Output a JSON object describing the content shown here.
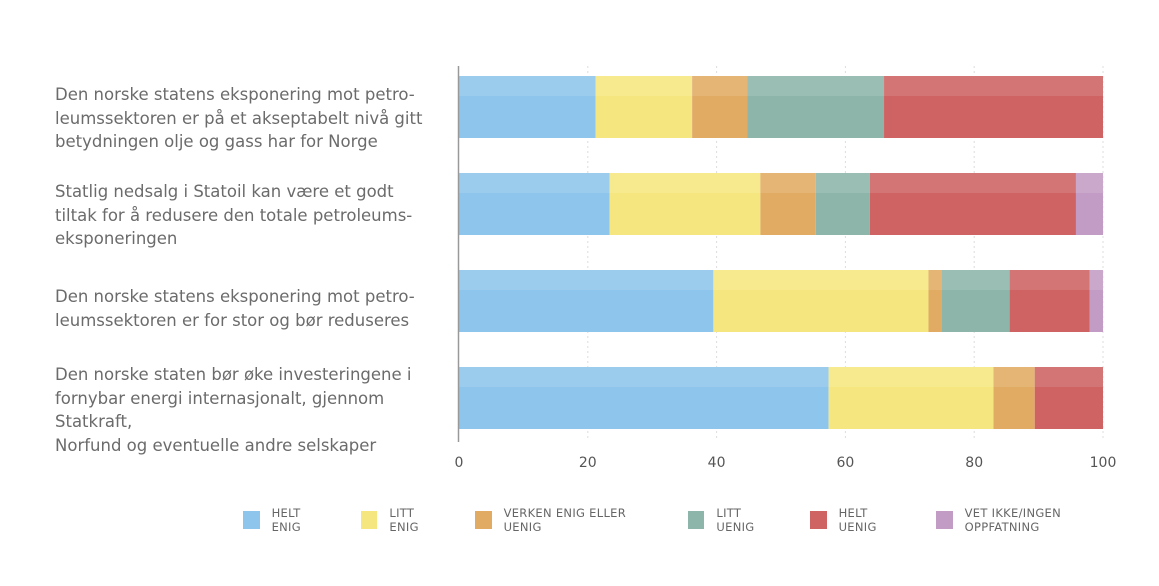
{
  "chart_data": {
    "type": "bar",
    "orientation": "horizontal",
    "stacked": true,
    "categories": [
      "Den norske statens eksponering mot petro-\nleumssektoren er på et akseptabelt nivå gitt\nbetydningen olje og gass har for Norge",
      "Statlig nedsalg i Statoil kan være et godt\ntiltak for å redusere den totale petroleums-\neksponeringen",
      "Den norske statens eksponering mot petro-\nleumssektoren er for stor og bør reduseres",
      "Den norske staten bør øke investeringene i\nfornybar energi internasjonalt, gjennom Statkraft,\nNorfund og eventuelle andre selskaper"
    ],
    "series": [
      {
        "name": "HELT ENIG",
        "color": "#8ec5ec",
        "values": [
          21.2,
          23.4,
          39.5,
          57.4
        ]
      },
      {
        "name": "LITT ENIG",
        "color": "#f5e67f",
        "values": [
          15.0,
          23.4,
          33.4,
          25.6
        ]
      },
      {
        "name": "VERKEN ENIG ELLER UENIG",
        "color": "#e2ab64",
        "values": [
          8.6,
          8.6,
          2.0,
          6.4
        ]
      },
      {
        "name": "LITT UENIG",
        "color": "#8db5aa",
        "values": [
          21.2,
          8.4,
          10.6,
          0
        ]
      },
      {
        "name": "HELT UENIG",
        "color": "#cf6262",
        "values": [
          34.0,
          32.0,
          12.4,
          10.6
        ]
      },
      {
        "name": "VET IKKE/INGEN OPPFATNING",
        "color": "#c29cc4",
        "values": [
          0,
          4.2,
          2.1,
          0
        ]
      }
    ],
    "xlim": [
      0,
      100
    ],
    "xticks": [
      "0",
      "20",
      "40",
      "60",
      "80",
      "100"
    ],
    "grid": true,
    "legend_position": "bottom"
  }
}
